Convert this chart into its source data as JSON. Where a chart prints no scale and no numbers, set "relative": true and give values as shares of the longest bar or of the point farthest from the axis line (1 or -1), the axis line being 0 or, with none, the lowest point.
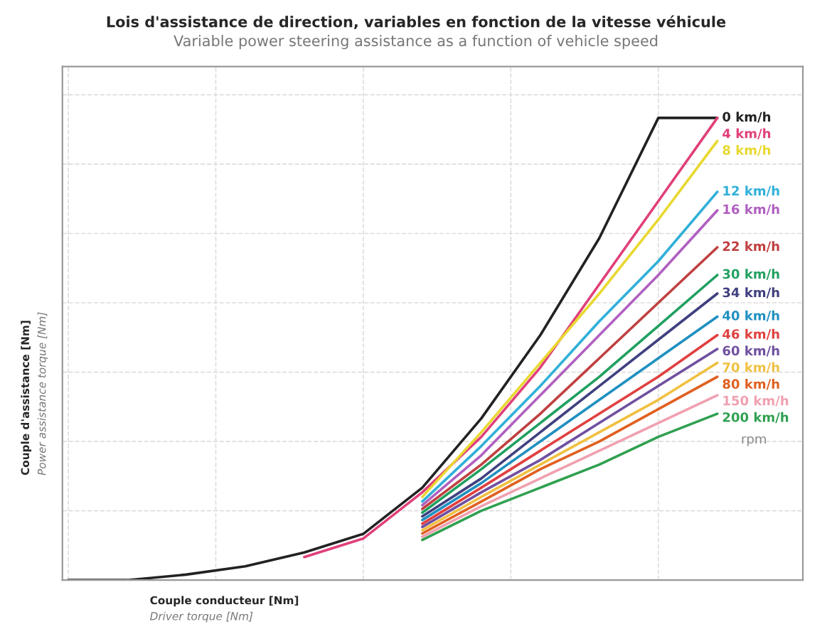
{
  "chart_data": {
    "type": "line",
    "title": "Lois d'assistance de direction, variables en fonction de la vitesse véhicule",
    "subtitle": "Variable power steering assistance as a function of vehicle speed",
    "xlabel": "Couple conducteur [Nm]",
    "ylabel": "Couple d'assistance [Nm]",
    "annotations": [
      "Driver torque [Nm]",
      "Power assistance torque [Nm]",
      "rpm"
    ],
    "relative": true,
    "grid": true,
    "legend": false,
    "tick_labels": false,
    "marker": "none",
    "line_style": "solid",
    "categories": [
      null,
      null,
      null,
      null,
      null,
      null,
      null,
      null,
      null,
      null,
      null,
      null
    ],
    "series": [
      {
        "name": "0 km/h",
        "color": "#222222",
        "values": [
          0,
          0,
          0.012,
          0.03,
          0.06,
          0.1,
          0.2,
          0.35,
          0.53,
          0.74,
          1,
          1
        ]
      },
      {
        "name": "4 km/h",
        "color": "#e0407a",
        "values": [
          null,
          null,
          null,
          null,
          0.05,
          0.09,
          0.19,
          0.31,
          0.46,
          0.64,
          0.82,
          1
        ]
      },
      {
        "name": "8 km/h",
        "color": "#e8d830",
        "values": [
          null,
          null,
          null,
          null,
          null,
          null,
          0.18,
          0.32,
          0.47,
          0.62,
          0.78,
          0.95
        ]
      },
      {
        "name": "12 km/h",
        "color": "#30b0d8",
        "values": [
          null,
          null,
          null,
          null,
          null,
          null,
          0.17,
          0.29,
          0.42,
          0.56,
          0.69,
          0.84
        ]
      },
      {
        "name": "16 km/h",
        "color": "#b060c0",
        "values": [
          null,
          null,
          null,
          null,
          null,
          null,
          0.162,
          0.27,
          0.4,
          0.53,
          0.66,
          0.8
        ]
      },
      {
        "name": "22 km/h",
        "color": "#c04040",
        "values": [
          null,
          null,
          null,
          null,
          null,
          null,
          0.154,
          0.25,
          0.36,
          0.48,
          0.6,
          0.72
        ]
      },
      {
        "name": "30 km/h",
        "color": "#20a060",
        "values": [
          null,
          null,
          null,
          null,
          null,
          null,
          0.146,
          0.24,
          0.34,
          0.44,
          0.55,
          0.66
        ]
      },
      {
        "name": "34 km/h",
        "color": "#404080",
        "values": [
          null,
          null,
          null,
          null,
          null,
          null,
          0.138,
          0.22,
          0.32,
          0.42,
          0.52,
          0.62
        ]
      },
      {
        "name": "40 km/h",
        "color": "#2090c0",
        "values": [
          null,
          null,
          null,
          null,
          null,
          null,
          0.13,
          0.21,
          0.3,
          0.39,
          0.48,
          0.57
        ]
      },
      {
        "name": "46 km/h",
        "color": "#e04040",
        "values": [
          null,
          null,
          null,
          null,
          null,
          null,
          0.122,
          0.2,
          0.28,
          0.36,
          0.44,
          0.53
        ]
      },
      {
        "name": "60 km/h",
        "color": "#7050a0",
        "values": [
          null,
          null,
          null,
          null,
          null,
          null,
          0.115,
          0.19,
          0.26,
          0.34,
          0.42,
          0.5
        ]
      },
      {
        "name": "70 km/h",
        "color": "#f0c040",
        "values": [
          null,
          null,
          null,
          null,
          null,
          null,
          0.108,
          0.18,
          0.25,
          0.32,
          0.39,
          0.47
        ]
      },
      {
        "name": "80 km/h",
        "color": "#e06020",
        "values": [
          null,
          null,
          null,
          null,
          null,
          null,
          0.101,
          0.17,
          0.24,
          0.3,
          0.37,
          0.44
        ]
      },
      {
        "name": "150 km/h",
        "color": "#f0a0b0",
        "values": [
          null,
          null,
          null,
          null,
          null,
          null,
          0.094,
          0.16,
          0.22,
          0.28,
          0.34,
          0.4
        ]
      },
      {
        "name": "200 km/h",
        "color": "#30a050",
        "values": [
          null,
          null,
          null,
          null,
          null,
          null,
          0.087,
          0.15,
          0.2,
          0.25,
          0.31,
          0.36
        ]
      }
    ]
  }
}
